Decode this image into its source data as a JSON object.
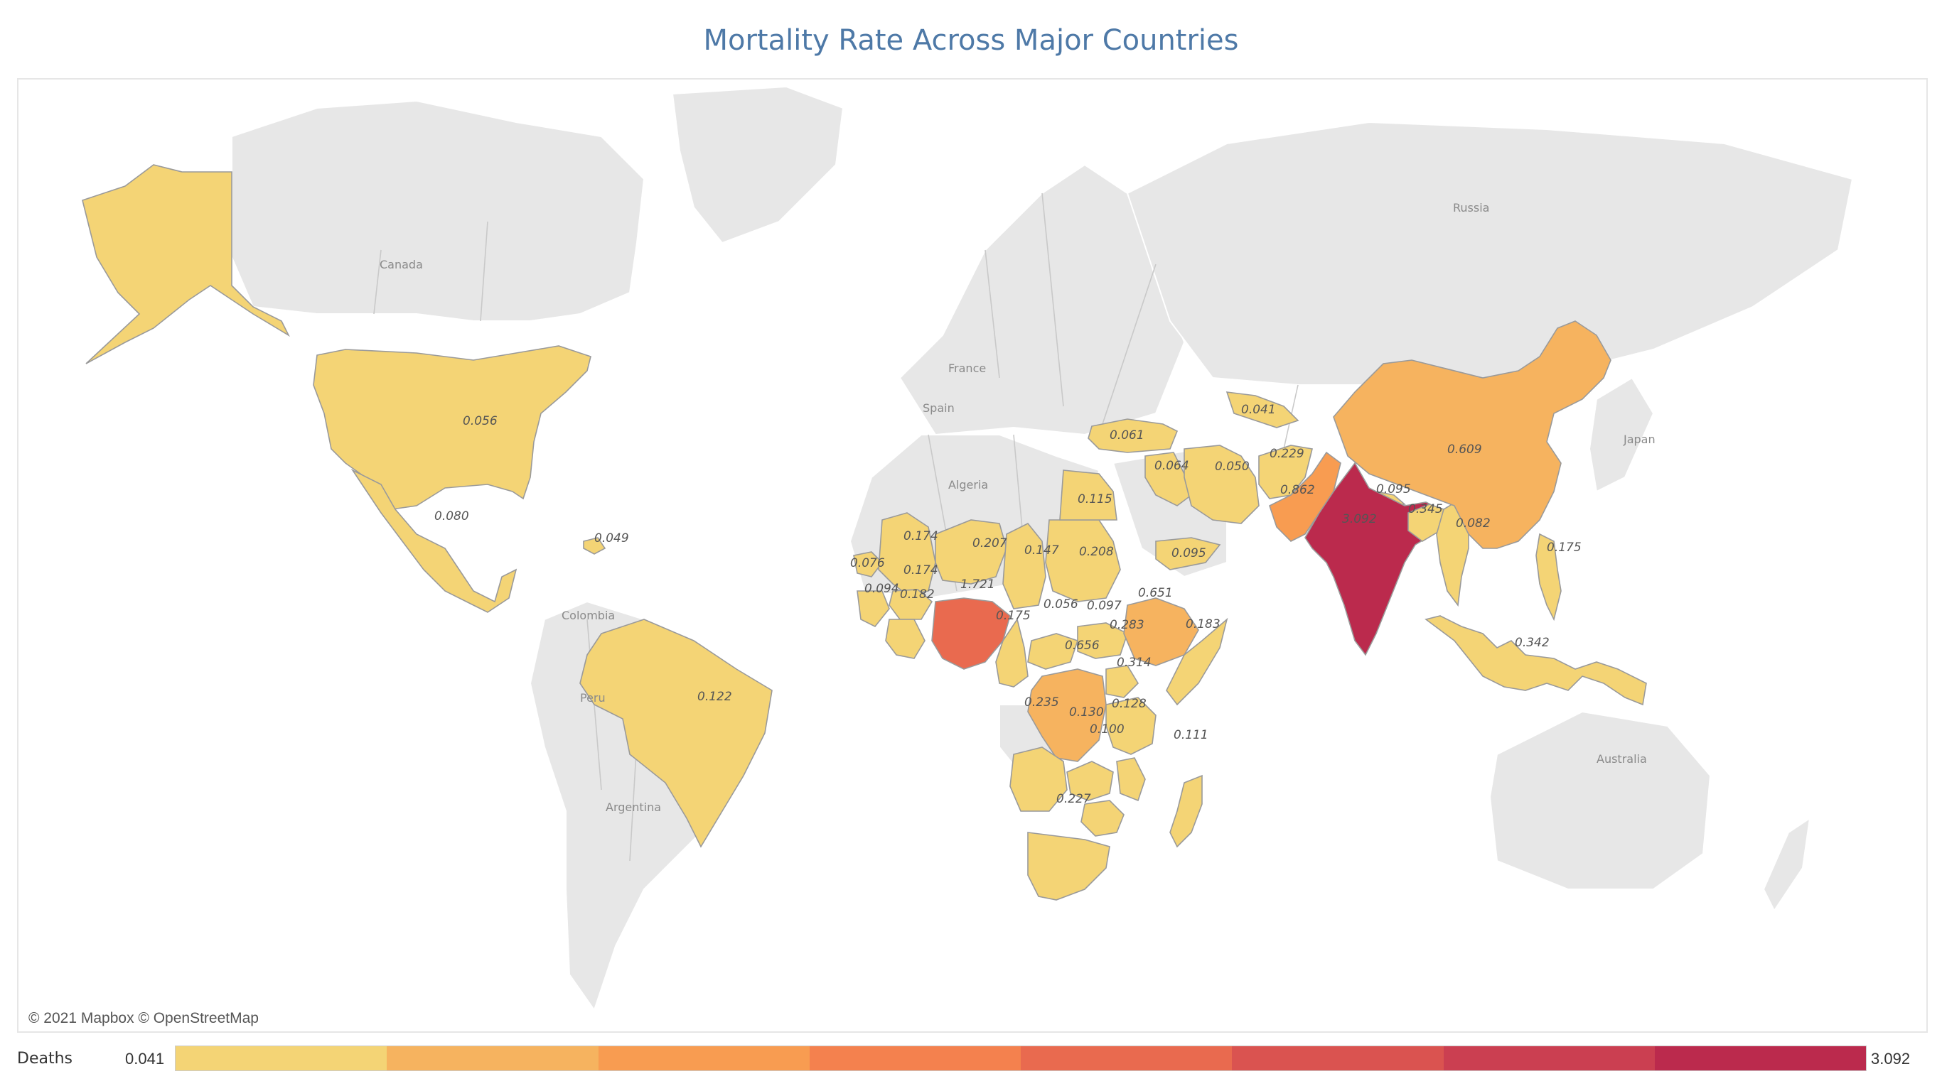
{
  "title": "Mortality Rate Across Major Countries",
  "attribution": "© 2021 Mapbox © OpenStreetMap",
  "legend": {
    "title": "Deaths",
    "min": "0.041",
    "max": "3.092",
    "steps": [
      "#f4d475",
      "#f6b35f",
      "#f89c51",
      "#f4814e",
      "#e96a4f",
      "#da5350",
      "#cb3f51",
      "#bb2a4d"
    ]
  },
  "place_labels": {
    "russia": "Russia",
    "canada": "Canada",
    "france": "France",
    "spain": "Spain",
    "algeria": "Algeria",
    "japan": "Japan",
    "colombia": "Colombia",
    "peru": "Peru",
    "argentina": "Argentina",
    "australia": "Australia"
  },
  "countries": [
    {
      "id": "usa",
      "label": "0.056",
      "value": 0.056
    },
    {
      "id": "alaska",
      "label": "",
      "value": 0.056
    },
    {
      "id": "mexico",
      "label": "0.080",
      "value": 0.08
    },
    {
      "id": "haiti",
      "label": "0.049",
      "value": 0.049
    },
    {
      "id": "brazil",
      "label": "0.122",
      "value": 0.122
    },
    {
      "id": "turkey",
      "label": "0.061",
      "value": 0.061
    },
    {
      "id": "uzbekistan",
      "label": "0.041",
      "value": 0.041
    },
    {
      "id": "iraq",
      "label": "0.064",
      "value": 0.064
    },
    {
      "id": "iran",
      "label": "0.050",
      "value": 0.05
    },
    {
      "id": "afghanistan",
      "label": "0.229",
      "value": 0.229
    },
    {
      "id": "pakistan",
      "label": "0.862",
      "value": 0.862
    },
    {
      "id": "nepal",
      "label": "0.095",
      "value": 0.095
    },
    {
      "id": "india",
      "label": "3.092",
      "value": 3.092
    },
    {
      "id": "bangladesh",
      "label": "0.345",
      "value": 0.345
    },
    {
      "id": "myanmar",
      "label": "0.082",
      "value": 0.082
    },
    {
      "id": "china",
      "label": "0.609",
      "value": 0.609
    },
    {
      "id": "philippines",
      "label": "0.175",
      "value": 0.175
    },
    {
      "id": "indonesia",
      "label": "0.342",
      "value": 0.342
    },
    {
      "id": "mali",
      "label": "0.174",
      "value": 0.174
    },
    {
      "id": "niger",
      "label": "0.207",
      "value": 0.207
    },
    {
      "id": "chad",
      "label": "0.147",
      "value": 0.147
    },
    {
      "id": "sudan",
      "label": "0.208",
      "value": 0.208
    },
    {
      "id": "egypt",
      "label": "0.115",
      "value": 0.115
    },
    {
      "id": "yemen",
      "label": "0.095",
      "value": 0.095
    },
    {
      "id": "senegal",
      "label": "0.076",
      "value": 0.076
    },
    {
      "id": "burkina",
      "label": "0.174",
      "value": 0.174
    },
    {
      "id": "guinea",
      "label": "0.094",
      "value": 0.094
    },
    {
      "id": "ghana",
      "label": "0.182",
      "value": 0.182
    },
    {
      "id": "nigeria",
      "label": "1.721",
      "value": 1.721
    },
    {
      "id": "cameroon",
      "label": "0.175",
      "value": 0.175
    },
    {
      "id": "car",
      "label": "0.056",
      "value": 0.056
    },
    {
      "id": "ssudan",
      "label": "0.097",
      "value": 0.097
    },
    {
      "id": "ethiopia",
      "label": "0.651",
      "value": 0.651
    },
    {
      "id": "somalia",
      "label": "0.183",
      "value": 0.183
    },
    {
      "id": "uganda",
      "label": "0.283",
      "value": 0.283
    },
    {
      "id": "drc",
      "label": "0.656",
      "value": 0.656
    },
    {
      "id": "tanzania",
      "label": "0.314",
      "value": 0.314
    },
    {
      "id": "angola",
      "label": "0.235",
      "value": 0.235
    },
    {
      "id": "zambia",
      "label": "0.130",
      "value": 0.13
    },
    {
      "id": "malawi",
      "label": "0.128",
      "value": 0.128
    },
    {
      "id": "zimbabwe",
      "label": "0.100",
      "value": 0.1
    },
    {
      "id": "madagascar",
      "label": "0.111",
      "value": 0.111
    },
    {
      "id": "southafrica",
      "label": "0.227",
      "value": 0.227
    }
  ]
}
